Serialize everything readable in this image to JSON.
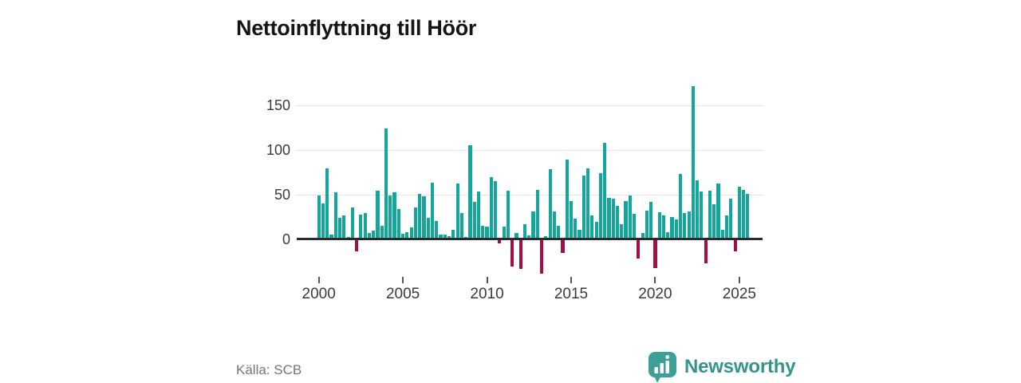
{
  "title": "Nettoinflyttning till Höör",
  "source": "Källa: SCB",
  "logo": {
    "text": "Newsworthy",
    "icon": "speech-bubble-bar-chart-icon"
  },
  "colors": {
    "positive_bar": "#13a79c",
    "negative_bar": "#a60d45",
    "axis": "#2b2b2b",
    "grid": "#e3e3e3",
    "tick_label": "#3a3a3a",
    "title_text": "#141414",
    "source_text": "#757575",
    "brand": "#33948c"
  },
  "chart_data": {
    "type": "bar",
    "title": "Nettoinflyttning till Höör",
    "xlabel": "",
    "ylabel": "",
    "frequency": "quarterly",
    "x_start": "2000 Q1",
    "x_tick_labels": [
      "2000",
      "2005",
      "2010",
      "2015",
      "2020",
      "2025"
    ],
    "x_tick_indices": [
      0,
      20,
      40,
      60,
      80,
      100
    ],
    "y_ticks": [
      0,
      50,
      100,
      150
    ],
    "ylim": [
      -45,
      180
    ],
    "grid": "horizontal",
    "legend": "none",
    "values": [
      49,
      40,
      79,
      5,
      52,
      24,
      26,
      2,
      35,
      -13,
      27,
      29,
      7,
      9,
      54,
      15,
      124,
      49,
      52,
      34,
      6,
      8,
      13,
      35,
      51,
      48,
      24,
      63,
      20,
      5,
      5,
      3,
      10,
      62,
      29,
      2,
      105,
      42,
      53,
      15,
      14,
      69,
      65,
      -4,
      14,
      54,
      -30,
      7,
      -33,
      17,
      4,
      31,
      55,
      -38,
      3,
      78,
      31,
      15,
      -15,
      89,
      43,
      23,
      10,
      71,
      79,
      26,
      19,
      74,
      108,
      46,
      45,
      37,
      17,
      43,
      49,
      28,
      -21,
      7,
      32,
      42,
      -32,
      30,
      26,
      8,
      25,
      22,
      73,
      29,
      31,
      172,
      66,
      53,
      -26,
      54,
      39,
      62,
      10,
      26,
      45,
      -13,
      59,
      55,
      51
    ]
  }
}
